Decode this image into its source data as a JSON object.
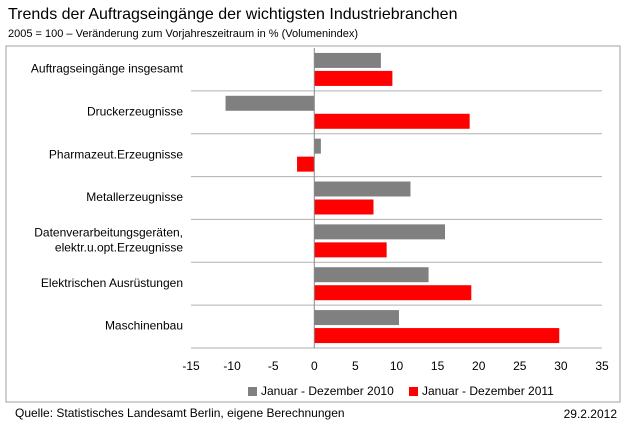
{
  "chart_data": {
    "type": "bar",
    "orientation": "horizontal",
    "title": "Trends der Auftragseingänge der wichtigsten Industriebranchen",
    "subtitle": "2005 = 100 – Veränderung zum Vorjahreszeitraum in % (Volumenindex)",
    "categories": [
      "Auftragseingänge insgesamt",
      "Druckerzeugnisse",
      "Pharmazeut.Erzeugnisse",
      "Metallerzeugnisse",
      "Datenverarbeitungsgeräten,\nelektr.u.opt.Erzeugnisse",
      "Elektrischen Ausrüstungen",
      "Maschinenbau"
    ],
    "series": [
      {
        "name": "Januar - Dezember 2010",
        "color": "#808080",
        "values": [
          8.1,
          -10.8,
          0.8,
          11.7,
          15.9,
          13.9,
          10.3
        ]
      },
      {
        "name": "Januar - Dezember 2011",
        "color": "#ff0000",
        "values": [
          9.5,
          18.9,
          -2.1,
          7.2,
          8.8,
          19.1,
          29.8
        ]
      }
    ],
    "xlim": [
      -15,
      35
    ],
    "xticks": [
      -15,
      -10,
      -5,
      0,
      5,
      10,
      15,
      20,
      25,
      30,
      35
    ],
    "grid": true,
    "legend": "bottom",
    "source": "Quelle: Statistisches Landesamt Berlin, eigene Berechnungen",
    "date": "29.2.2012"
  }
}
